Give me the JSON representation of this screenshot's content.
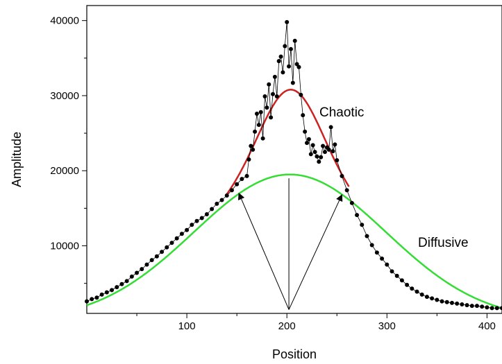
{
  "chart_data": {
    "type": "scatter",
    "title": "",
    "xlabel": "Position",
    "ylabel": "Amplitude",
    "xlim": [
      0,
      415
    ],
    "ylim": [
      1000,
      42000
    ],
    "x_ticks": [
      100,
      200,
      300,
      400
    ],
    "y_ticks": [
      10000,
      20000,
      30000,
      40000
    ],
    "x_ticks_labeled": true,
    "y_ticks_labeled": true,
    "grid": false,
    "annotations": [
      {
        "text": "Chaotic",
        "x": 243,
        "y": 28100
      },
      {
        "text": "Diffusive",
        "x": 330,
        "y": 10700
      }
    ],
    "arrows": [
      {
        "from": [
          202,
          1500
        ],
        "to": [
          152,
          17000
        ]
      },
      {
        "from": [
          202,
          1500
        ],
        "to": [
          255,
          16800
        ]
      },
      {
        "from": [
          202,
          1500
        ],
        "to": [
          202,
          19000
        ]
      }
    ],
    "series": [
      {
        "label_key": "data",
        "kind": "markers-line",
        "color": "#000000",
        "x": [
          0,
          5,
          10,
          15,
          20,
          25,
          30,
          35,
          40,
          45,
          50,
          55,
          60,
          65,
          70,
          75,
          80,
          85,
          90,
          95,
          100,
          105,
          110,
          115,
          120,
          125,
          130,
          135,
          140,
          145,
          150,
          155,
          160,
          162,
          164,
          166,
          168,
          170,
          172,
          174,
          176,
          178,
          180,
          182,
          184,
          186,
          188,
          190,
          192,
          194,
          196,
          198,
          200,
          202,
          204,
          206,
          208,
          210,
          212,
          214,
          216,
          218,
          220,
          222,
          224,
          226,
          228,
          230,
          232,
          234,
          236,
          238,
          240,
          242,
          244,
          246,
          248,
          250,
          255,
          260,
          265,
          270,
          275,
          280,
          285,
          290,
          295,
          300,
          305,
          310,
          315,
          320,
          325,
          330,
          335,
          340,
          345,
          350,
          355,
          360,
          365,
          370,
          375,
          380,
          385,
          390,
          395,
          400,
          405,
          410,
          415
        ],
        "y": [
          2600,
          2900,
          3100,
          3500,
          3800,
          4100,
          4500,
          4900,
          5300,
          5900,
          6400,
          6900,
          7500,
          8100,
          8600,
          9200,
          9800,
          10400,
          11000,
          11600,
          12100,
          12800,
          13300,
          13700,
          14200,
          14900,
          15600,
          16100,
          16700,
          17400,
          18200,
          18900,
          19300,
          21500,
          23300,
          22800,
          25200,
          27600,
          26100,
          27800,
          24300,
          29900,
          28400,
          31500,
          27100,
          30200,
          32500,
          29900,
          34600,
          35200,
          33100,
          36600,
          39800,
          33900,
          36200,
          31700,
          37300,
          34200,
          33800,
          30100,
          27400,
          25200,
          23700,
          24200,
          22200,
          23400,
          22500,
          21900,
          21200,
          21800,
          23300,
          22500,
          23100,
          22800,
          25800,
          22600,
          23500,
          21400,
          19300,
          17400,
          15700,
          14100,
          12800,
          11300,
          10100,
          9100,
          8300,
          7500,
          6600,
          6000,
          5400,
          4800,
          4300,
          3900,
          3500,
          3200,
          3000,
          2800,
          2600,
          2500,
          2400,
          2300,
          2200,
          2100,
          2000,
          2000,
          1900,
          1800,
          1700,
          1700,
          1700
        ]
      },
      {
        "label_key": "diffusive-fit",
        "kind": "line",
        "color": "#33dd33",
        "shape": "gaussian",
        "amplitude": 19500,
        "center": 203,
        "sigma": 96,
        "baseline": 0,
        "x_range": [
          0,
          415
        ]
      },
      {
        "label_key": "chaotic-fit",
        "kind": "line",
        "color": "#cc2222",
        "shape": "gaussian-sum",
        "components": [
          {
            "amplitude": 19500,
            "center": 203,
            "sigma": 96
          },
          {
            "amplitude": 11300,
            "center": 204,
            "sigma": 30
          }
        ],
        "x_range": [
          140,
          262
        ]
      }
    ]
  }
}
